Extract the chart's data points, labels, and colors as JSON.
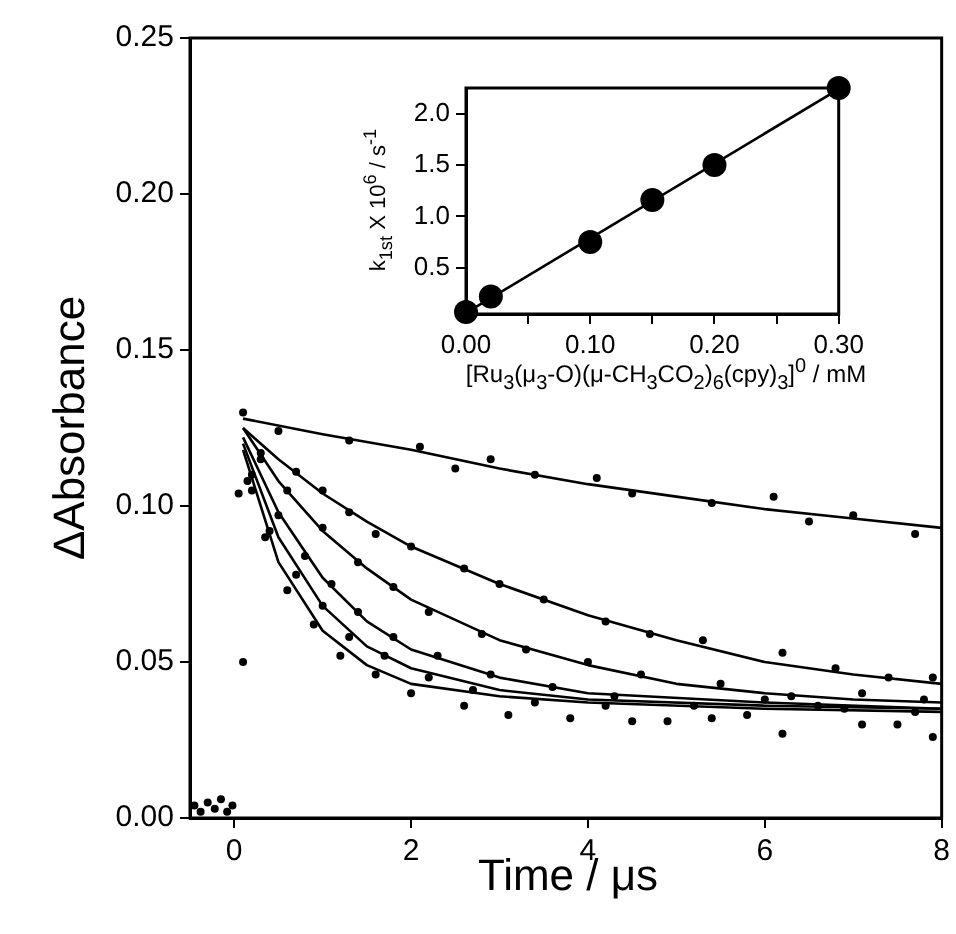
{
  "chart_data": [
    {
      "type": "scatter",
      "xlabel": "Time / μs",
      "ylabel": "ΔAbsorbance",
      "marker": "circle",
      "legend": false,
      "xlim": [
        -0.5,
        8
      ],
      "ylim": [
        0,
        0.25
      ],
      "xticks": [
        0,
        2,
        4,
        6,
        8
      ],
      "yticks": [
        {
          "value": 0,
          "label": "0.00"
        },
        {
          "value": 0.05,
          "label": "0.05"
        },
        {
          "value": 0.1,
          "label": "0.10"
        },
        {
          "value": 0.15,
          "label": "0.15"
        },
        {
          "value": 0.2,
          "label": "0.20"
        },
        {
          "value": 0.25,
          "label": "0.25"
        }
      ],
      "series": [
        {
          "type": "scatter",
          "color": "#000000",
          "x": [
            0.5,
            1.3,
            2.1,
            2.5,
            2.9,
            3.4,
            4.1,
            4.5,
            5.4,
            6.1,
            6.5,
            7.0,
            7.7
          ],
          "values": [
            0.124,
            0.121,
            0.119,
            0.112,
            0.115,
            0.11,
            0.109,
            0.104,
            0.101,
            0.103,
            0.095,
            0.097,
            0.091
          ]
        },
        {
          "type": "scatter",
          "color": "#000000",
          "x": [
            0.3,
            0.7,
            1.0,
            1.3,
            1.6,
            2.0,
            2.6,
            3.0,
            3.5,
            4.2,
            4.7,
            5.3,
            6.2,
            6.8,
            7.4,
            7.9
          ],
          "values": [
            0.117,
            0.111,
            0.105,
            0.098,
            0.091,
            0.087,
            0.08,
            0.075,
            0.07,
            0.063,
            0.059,
            0.057,
            0.053,
            0.048,
            0.045,
            0.045
          ]
        },
        {
          "type": "scatter",
          "color": "#000000",
          "x": [
            0.3,
            0.6,
            1.0,
            1.4,
            1.8,
            2.2,
            2.8,
            3.3,
            4.0,
            4.6,
            5.5,
            6.3,
            7.1,
            7.8
          ],
          "values": [
            0.115,
            0.105,
            0.093,
            0.082,
            0.074,
            0.066,
            0.059,
            0.054,
            0.05,
            0.046,
            0.043,
            0.039,
            0.04,
            0.038
          ]
        },
        {
          "type": "scatter",
          "color": "#000000",
          "x": [
            0.2,
            0.5,
            0.8,
            1.1,
            1.4,
            1.8,
            2.3,
            2.9,
            3.6,
            4.3,
            5.2,
            6.0,
            6.9,
            7.7
          ],
          "values": [
            0.11,
            0.097,
            0.084,
            0.075,
            0.066,
            0.058,
            0.052,
            0.046,
            0.042,
            0.039,
            0.036,
            0.038,
            0.035,
            0.034
          ]
        },
        {
          "type": "scatter",
          "color": "#000000",
          "x": [
            0.2,
            0.4,
            0.7,
            1.0,
            1.3,
            1.7,
            2.2,
            2.7,
            3.4,
            4.2,
            4.9,
            5.8,
            6.6,
            7.5
          ],
          "values": [
            0.105,
            0.092,
            0.078,
            0.068,
            0.058,
            0.052,
            0.045,
            0.041,
            0.037,
            0.036,
            0.031,
            0.033,
            0.036,
            0.03
          ]
        },
        {
          "type": "scatter",
          "color": "#000000",
          "x": [
            0.15,
            0.35,
            0.6,
            0.9,
            1.2,
            1.6,
            2.0,
            2.6,
            3.1,
            3.8,
            4.5,
            5.4,
            6.2,
            7.1,
            7.9
          ],
          "values": [
            0.108,
            0.09,
            0.073,
            0.062,
            0.052,
            0.046,
            0.04,
            0.036,
            0.033,
            0.032,
            0.031,
            0.032,
            0.027,
            0.03,
            0.026
          ]
        },
        {
          "type": "scatter",
          "color": "#000000",
          "x": [
            -0.45,
            -0.38,
            -0.3,
            -0.22,
            -0.15,
            -0.08,
            -0.02,
            0.05,
            0.1,
            0.1
          ],
          "values": [
            0.004,
            0.002,
            0.005,
            0.003,
            0.006,
            0.002,
            0.004,
            0.104,
            0.05,
            0.13
          ]
        },
        {
          "type": "line",
          "marker": "none",
          "color": "#000000",
          "x": [
            0.1,
            1,
            2,
            3,
            4,
            5,
            6,
            7,
            8
          ],
          "values": [
            0.128,
            0.123,
            0.118,
            0.112,
            0.107,
            0.103,
            0.099,
            0.096,
            0.093
          ]
        },
        {
          "type": "line",
          "marker": "none",
          "color": "#000000",
          "x": [
            0.1,
            0.5,
            1,
            1.5,
            2,
            3,
            4,
            5,
            6,
            7,
            8
          ],
          "values": [
            0.125,
            0.115,
            0.104,
            0.095,
            0.087,
            0.075,
            0.065,
            0.057,
            0.05,
            0.046,
            0.043
          ]
        },
        {
          "type": "line",
          "marker": "none",
          "color": "#000000",
          "x": [
            0.1,
            0.5,
            1,
            1.5,
            2,
            3,
            4,
            5,
            6,
            7,
            8
          ],
          "values": [
            0.125,
            0.108,
            0.092,
            0.08,
            0.07,
            0.057,
            0.049,
            0.043,
            0.04,
            0.038,
            0.037
          ]
        },
        {
          "type": "line",
          "marker": "none",
          "color": "#000000",
          "x": [
            0.1,
            0.5,
            1,
            1.5,
            2,
            3,
            4,
            6,
            8
          ],
          "values": [
            0.122,
            0.098,
            0.077,
            0.063,
            0.054,
            0.045,
            0.04,
            0.037,
            0.035
          ]
        },
        {
          "type": "line",
          "marker": "none",
          "color": "#000000",
          "x": [
            0.1,
            0.5,
            1,
            1.5,
            2,
            3,
            4,
            6,
            8
          ],
          "values": [
            0.12,
            0.09,
            0.068,
            0.055,
            0.048,
            0.041,
            0.038,
            0.036,
            0.035
          ]
        },
        {
          "type": "line",
          "marker": "none",
          "color": "#000000",
          "x": [
            0.1,
            0.5,
            1,
            1.5,
            2,
            3,
            4,
            6,
            8
          ],
          "values": [
            0.118,
            0.082,
            0.06,
            0.049,
            0.043,
            0.039,
            0.037,
            0.035,
            0.034
          ]
        }
      ]
    },
    {
      "type": "scatter",
      "xlabel": "[Ru$_{3}$(μ$_{3}$-O)(μ-CH$_{3}$CO$_{2}$)$_{6}$(cpy)$_{3}$]$^{0}$ / mM",
      "ylabel": "k$_{1st}$ X 10$^{6}$ / s$^{-1}$",
      "marker": "circle",
      "legend": false,
      "xlim": [
        0,
        0.3
      ],
      "ylim": [
        0.05,
        2.25
      ],
      "xticks": [
        {
          "value": 0,
          "label": "0.00"
        },
        {
          "value": 0.05,
          "label": null
        },
        {
          "value": 0.1,
          "label": "0.10"
        },
        {
          "value": 0.15,
          "label": null
        },
        {
          "value": 0.2,
          "label": "0.20"
        },
        {
          "value": 0.25,
          "label": null
        },
        {
          "value": 0.3,
          "label": "0.30"
        }
      ],
      "yticks": [
        {
          "value": 0.5,
          "label": "0.5"
        },
        {
          "value": 1,
          "label": "1.0"
        },
        {
          "value": 1.5,
          "label": "1.5"
        },
        {
          "value": 2,
          "label": "2.0"
        }
      ],
      "series": [
        {
          "type": "scatter",
          "color": "#000000",
          "x": [
            0,
            0.02,
            0.1,
            0.15,
            0.2,
            0.3
          ],
          "values": [
            0.07,
            0.22,
            0.75,
            1.16,
            1.5,
            2.25
          ]
        },
        {
          "type": "line",
          "marker": "none",
          "color": "#000000",
          "x": [
            0,
            0.3
          ],
          "values": [
            0.06,
            2.24
          ]
        }
      ]
    }
  ]
}
